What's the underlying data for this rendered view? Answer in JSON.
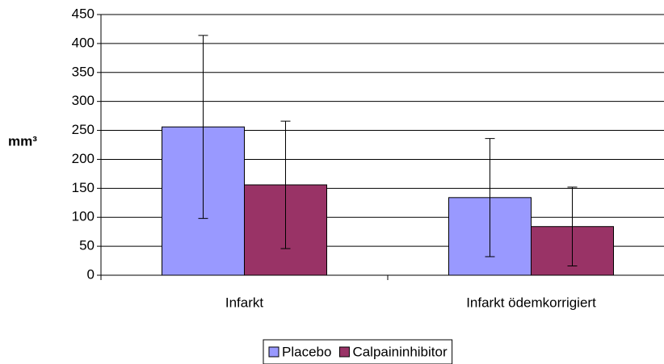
{
  "chart_data": {
    "type": "bar",
    "ylabel": "mm³",
    "categories": [
      "Infarkt",
      "Infarkt ödemkorrigiert"
    ],
    "series": [
      {
        "name": "Placebo",
        "color": "#9999ff",
        "values": [
          256,
          134
        ],
        "errors": [
          158,
          102
        ]
      },
      {
        "name": "Calpaininhibitor",
        "color": "#993366",
        "values": [
          156,
          84
        ],
        "errors": [
          110,
          68
        ]
      }
    ],
    "ylim": [
      0,
      450
    ],
    "yticks": [
      0,
      50,
      100,
      150,
      200,
      250,
      300,
      350,
      400,
      450
    ],
    "grid": true,
    "legend": "bottom"
  }
}
